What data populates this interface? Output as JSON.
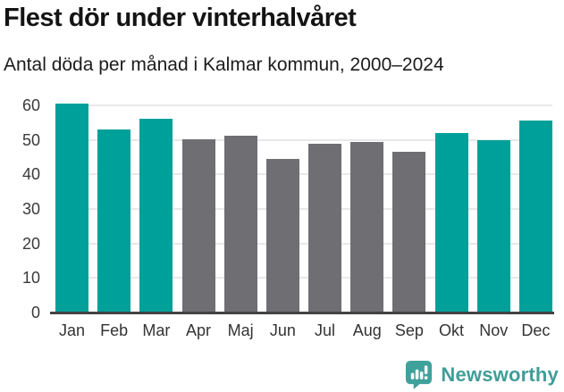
{
  "header": {
    "title": "Flest dör under vinterhalvåret",
    "subtitle": "Antal döda per månad i Kalmar kommun, 2000–2024"
  },
  "chart_data": {
    "type": "bar",
    "title": "Flest dör under vinterhalvåret",
    "subtitle": "Antal döda per månad i Kalmar kommun, 2000–2024",
    "categories": [
      "Jan",
      "Feb",
      "Mar",
      "Apr",
      "Maj",
      "Jun",
      "Jul",
      "Aug",
      "Sep",
      "Okt",
      "Nov",
      "Dec"
    ],
    "values": [
      60.4,
      53.1,
      56.2,
      50.3,
      51.3,
      44.6,
      48.9,
      49.4,
      46.6,
      52.0,
      49.9,
      55.7
    ],
    "highlighted": [
      true,
      true,
      true,
      false,
      false,
      false,
      false,
      false,
      false,
      true,
      true,
      true
    ],
    "xlabel": "",
    "ylabel": "",
    "yticks": [
      0,
      10,
      20,
      30,
      40,
      50,
      60
    ],
    "ylim": [
      0,
      62
    ],
    "grid": true,
    "legend": "none",
    "colors": {
      "highlight": "#00A09A",
      "muted": "#6F6E73",
      "gridline": "#E8E8E8",
      "axis_line": "#434343"
    }
  },
  "footer": {
    "brand": "Newsworthy",
    "brand_color": "#3F9E99",
    "logo_color": "#3FA19B"
  }
}
